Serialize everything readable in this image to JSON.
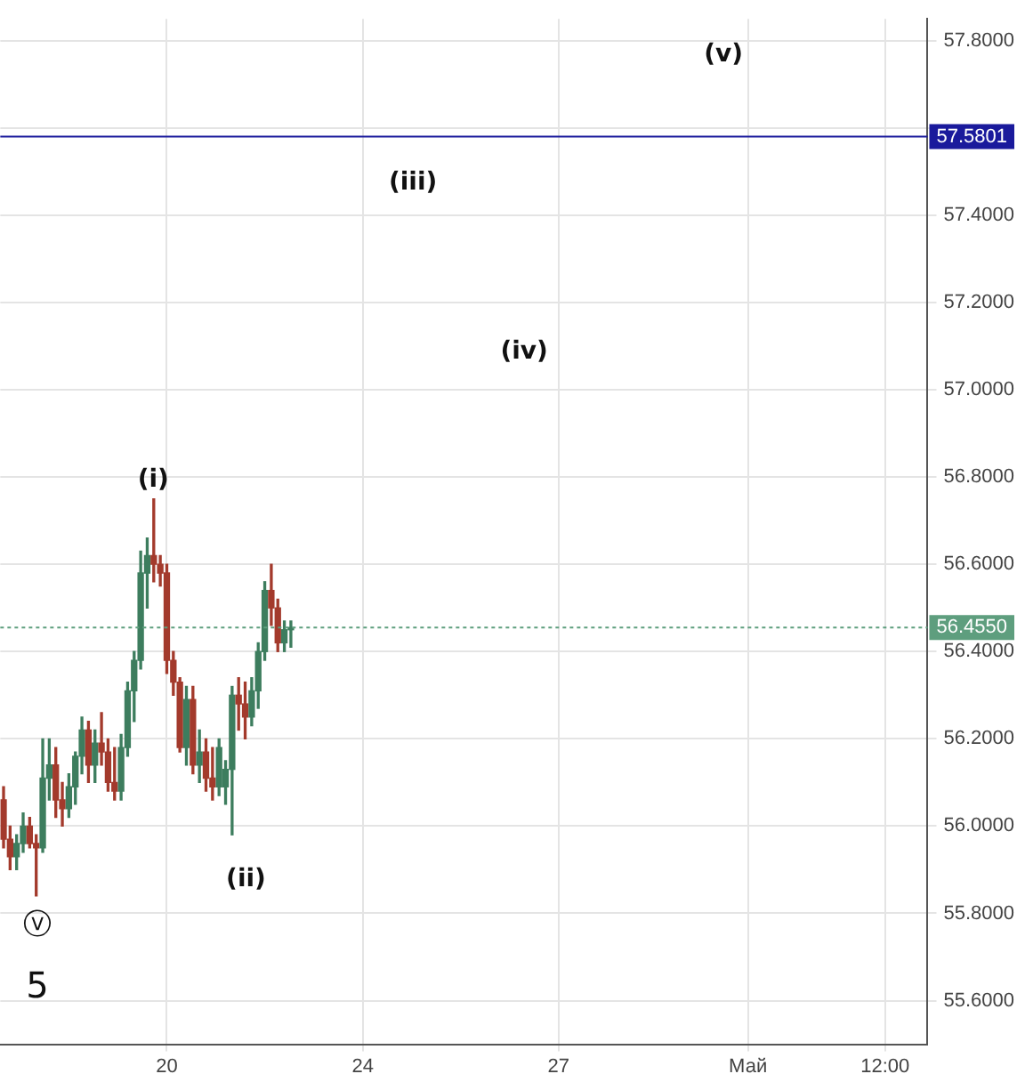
{
  "chart_data": {
    "type": "candlestick",
    "categories": [
      null,
      null,
      null,
      null,
      null,
      null,
      null,
      null,
      null,
      null,
      null,
      null,
      null,
      null,
      null,
      null,
      null,
      null,
      null,
      null,
      null,
      null,
      null,
      null,
      null,
      "20",
      null,
      null,
      null,
      null,
      null,
      null,
      null,
      null,
      null,
      null,
      null,
      null,
      null,
      null,
      null,
      null,
      null,
      null,
      null,
      null,
      null,
      null,
      null,
      null,
      null,
      null,
      null,
      null,
      null,
      "24",
      null,
      null,
      null,
      null,
      null,
      null,
      null,
      null,
      null,
      null,
      null,
      null,
      null,
      null,
      null,
      null,
      null,
      null,
      null,
      null,
      null,
      null,
      null,
      null,
      null,
      null,
      null,
      null,
      null,
      "27",
      null,
      null,
      null,
      null,
      null,
      null,
      null,
      null,
      null,
      null,
      null,
      null,
      null,
      null,
      null,
      null,
      null,
      null,
      null,
      null,
      null,
      null,
      null,
      null,
      null,
      null,
      null,
      null,
      "Май",
      null,
      null,
      null,
      null,
      null,
      null,
      null,
      null,
      null,
      null,
      null,
      null,
      null,
      null,
      null,
      null,
      null,
      null,
      null,
      null,
      "12:00",
      null,
      null,
      null,
      null,
      null,
      null
    ],
    "ohlc": [
      [
        56.06,
        56.09,
        55.95,
        55.97
      ],
      [
        55.97,
        56.0,
        55.9,
        55.93
      ],
      [
        55.93,
        55.98,
        55.9,
        55.96
      ],
      [
        55.96,
        56.03,
        55.94,
        56.0
      ],
      [
        56.0,
        56.02,
        55.95,
        55.96
      ],
      [
        55.96,
        55.98,
        55.84,
        55.95
      ],
      [
        55.95,
        56.2,
        55.94,
        56.11
      ],
      [
        56.11,
        56.2,
        56.06,
        56.14
      ],
      [
        56.14,
        56.18,
        56.02,
        56.06
      ],
      [
        56.06,
        56.1,
        56.0,
        56.04
      ],
      [
        56.04,
        56.12,
        56.02,
        56.09
      ],
      [
        56.09,
        56.17,
        56.05,
        56.16
      ],
      [
        56.16,
        56.25,
        56.12,
        56.22
      ],
      [
        56.22,
        56.24,
        56.1,
        56.14
      ],
      [
        56.14,
        56.22,
        56.1,
        56.19
      ],
      [
        56.19,
        56.26,
        56.14,
        56.17
      ],
      [
        56.17,
        56.2,
        56.08,
        56.1
      ],
      [
        56.1,
        56.18,
        56.06,
        56.08
      ],
      [
        56.08,
        56.21,
        56.06,
        56.18
      ],
      [
        56.18,
        56.33,
        56.16,
        56.31
      ],
      [
        56.31,
        56.4,
        56.24,
        56.38
      ],
      [
        56.38,
        56.63,
        56.36,
        56.58
      ],
      [
        56.58,
        56.66,
        56.5,
        56.62
      ],
      [
        56.62,
        56.75,
        56.56,
        56.6
      ],
      [
        56.6,
        56.62,
        56.55,
        56.58
      ],
      [
        56.58,
        56.6,
        56.35,
        56.38
      ],
      [
        56.38,
        56.4,
        56.3,
        56.33
      ],
      [
        56.33,
        56.34,
        56.17,
        56.18
      ],
      [
        56.18,
        56.32,
        56.14,
        56.29
      ],
      [
        56.29,
        56.32,
        56.12,
        56.14
      ],
      [
        56.14,
        56.22,
        56.1,
        56.17
      ],
      [
        56.17,
        56.2,
        56.08,
        56.11
      ],
      [
        56.11,
        56.18,
        56.06,
        56.09
      ],
      [
        56.09,
        56.2,
        56.07,
        56.18
      ],
      [
        56.09,
        56.15,
        56.05,
        56.13
      ],
      [
        56.13,
        56.32,
        55.98,
        56.3
      ],
      [
        56.3,
        56.34,
        56.22,
        56.28
      ],
      [
        56.28,
        56.33,
        56.2,
        56.25
      ],
      [
        56.25,
        56.34,
        56.23,
        56.31
      ],
      [
        56.31,
        56.42,
        56.27,
        56.4
      ],
      [
        56.4,
        56.56,
        56.38,
        56.54
      ],
      [
        56.54,
        56.6,
        56.46,
        56.5
      ],
      [
        56.5,
        56.52,
        56.4,
        56.42
      ],
      [
        56.42,
        56.47,
        56.4,
        56.45
      ],
      [
        56.45,
        56.47,
        56.41,
        56.455
      ],
      null,
      null,
      null,
      null,
      null,
      null,
      null,
      null,
      null,
      null,
      null,
      null,
      null,
      null,
      null,
      null,
      null,
      null,
      null,
      null,
      null,
      null,
      null,
      null,
      null,
      null,
      null,
      null,
      null,
      null,
      null,
      null,
      null,
      null,
      null,
      null,
      null,
      null,
      null,
      null,
      null,
      null,
      null,
      null,
      null,
      null,
      null,
      null,
      null,
      null,
      null,
      null,
      null,
      null,
      null,
      null,
      null,
      null,
      null,
      null,
      null,
      null,
      null,
      null,
      null,
      null,
      null,
      null,
      null,
      null,
      null,
      null,
      null,
      null,
      null,
      null,
      null,
      null,
      null,
      null,
      null,
      null,
      null,
      null,
      null,
      null,
      null,
      null,
      null,
      null,
      null,
      null,
      null,
      null,
      null,
      null,
      null
    ],
    "colors": [
      "#a33a2c",
      "#a33a2c",
      "#3d7d5e",
      "#3d7d5e",
      "#a33a2c",
      "#a33a2c",
      "#3d7d5e",
      "#3d7d5e",
      "#a33a2c",
      "#a33a2c",
      "#3d7d5e",
      "#3d7d5e",
      "#3d7d5e",
      "#a33a2c",
      "#3d7d5e",
      "#a33a2c",
      "#a33a2c",
      "#a33a2c",
      "#3d7d5e",
      "#3d7d5e",
      "#3d7d5e",
      "#3d7d5e",
      "#3d7d5e",
      "#a33a2c",
      "#a33a2c",
      "#a33a2c",
      "#a33a2c",
      "#a33a2c",
      "#3d7d5e",
      "#a33a2c",
      "#3d7d5e",
      "#a33a2c",
      "#a33a2c",
      "#3d7d5e",
      "#3d7d5e",
      "#3d7d5e",
      "#a33a2c",
      "#a33a2c",
      "#3d7d5e",
      "#3d7d5e",
      "#3d7d5e",
      "#a33a2c",
      "#a33a2c",
      "#3d7d5e",
      "#3d7d5e",
      null,
      null,
      null,
      null,
      null,
      null,
      null,
      null,
      null,
      null,
      null,
      null,
      null,
      null,
      null,
      null,
      null,
      null,
      null,
      null,
      null,
      null,
      null,
      null,
      null,
      null,
      null,
      null,
      null,
      null,
      null,
      null,
      null,
      null,
      null,
      null,
      null,
      null,
      null,
      null,
      null,
      null,
      null,
      null,
      null,
      null,
      null,
      null,
      null,
      null,
      null,
      null,
      null,
      null,
      null,
      null,
      null,
      null,
      null,
      null,
      null,
      null,
      null,
      null,
      null,
      null,
      null,
      null,
      null,
      null,
      null,
      null,
      null,
      null,
      null,
      null,
      null,
      null,
      null,
      null,
      null,
      null,
      null,
      null,
      null,
      null,
      null,
      null,
      null,
      null,
      null,
      null,
      null,
      null,
      null,
      null,
      null
    ],
    "ylim": [
      55.5,
      57.85
    ],
    "yticks": [
      {
        "value": 55.6,
        "label": "55.6000"
      },
      {
        "value": 55.8,
        "label": "55.8000"
      },
      {
        "value": 56.0,
        "label": "56.0000"
      },
      {
        "value": 56.2,
        "label": "56.2000"
      },
      {
        "value": 56.4,
        "label": "56.4000"
      },
      {
        "value": 56.6,
        "label": "56.6000"
      },
      {
        "value": 56.8,
        "label": "56.8000"
      },
      {
        "value": 57.0,
        "label": "57.0000"
      },
      {
        "value": 57.2,
        "label": "57.2000"
      },
      {
        "value": 57.4,
        "label": "57.4000"
      },
      {
        "value": 57.6,
        "label": null
      },
      {
        "value": 57.8,
        "label": "57.8000"
      }
    ],
    "grid": true,
    "ref_lines": [
      {
        "axis": "y",
        "value": 57.5801,
        "label": "57.5801",
        "color": "#1a1a9c",
        "line_style": "solid"
      },
      {
        "axis": "y",
        "value": 56.455,
        "label": "56.4550",
        "color": "#5e9e7e",
        "line_style": "dotted"
      }
    ],
    "annotations": [
      "(v)",
      "(iii)",
      "(iv)",
      "(i)",
      "(ii)",
      "ⓥ",
      "5"
    ]
  }
}
